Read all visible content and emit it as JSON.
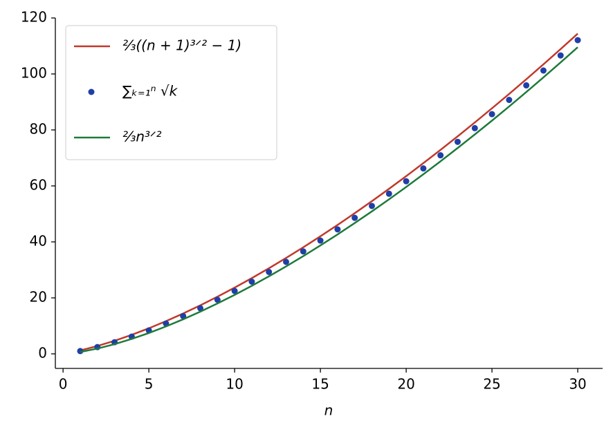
{
  "chart_data": {
    "type": "line",
    "x_label": "n",
    "x": [
      1,
      2,
      3,
      4,
      5,
      6,
      7,
      8,
      9,
      10,
      11,
      12,
      13,
      14,
      15,
      16,
      17,
      18,
      19,
      20,
      21,
      22,
      23,
      24,
      25,
      26,
      27,
      28,
      29,
      30
    ],
    "series": [
      {
        "name": "²⁄₃((n + 1)³ᐟ² − 1)",
        "color": "#c0392b",
        "style": "line",
        "values": [
          1.22,
          2.8,
          4.67,
          6.79,
          9.13,
          11.68,
          14.42,
          17.33,
          20.42,
          23.66,
          27.05,
          30.58,
          34.26,
          38.06,
          42,
          46.06,
          50.25,
          54.55,
          58.96,
          63.49,
          68.13,
          72.87,
          77.72,
          82.67,
          87.72,
          92.86,
          98.11,
          103.45,
          108.88,
          114.4
        ]
      },
      {
        "name": "∑ₖ₌₁ⁿ √k",
        "color": "#1f3fa8",
        "style": "points",
        "values": [
          1,
          2.41,
          4.15,
          6.15,
          8.38,
          10.83,
          13.48,
          16.31,
          19.31,
          22.47,
          25.79,
          29.25,
          32.86,
          36.6,
          40.47,
          44.47,
          48.59,
          52.84,
          57.2,
          61.67,
          66.25,
          70.94,
          75.74,
          80.64,
          85.64,
          90.73,
          95.93,
          101.22,
          106.61,
          112.08
        ]
      },
      {
        "name": "²⁄₃n³ᐟ²",
        "color": "#1e7a3a",
        "style": "line",
        "values": [
          0.67,
          1.89,
          3.46,
          5.33,
          7.45,
          9.8,
          12.35,
          15.08,
          18,
          21.08,
          24.32,
          27.71,
          31.25,
          34.92,
          38.73,
          42.67,
          46.73,
          50.91,
          55.21,
          59.63,
          64.16,
          68.79,
          73.54,
          78.38,
          83.33,
          88.38,
          93.53,
          98.78,
          104.11,
          109.54
        ]
      }
    ],
    "xlim": [
      -0.45,
      31.45
    ],
    "xticks": [
      0,
      5,
      10,
      15,
      20,
      25,
      30
    ],
    "ylim": [
      -5.2,
      120
    ],
    "yticks": [
      0,
      20,
      40,
      60,
      80,
      100,
      120
    ],
    "legend": "upper left"
  }
}
